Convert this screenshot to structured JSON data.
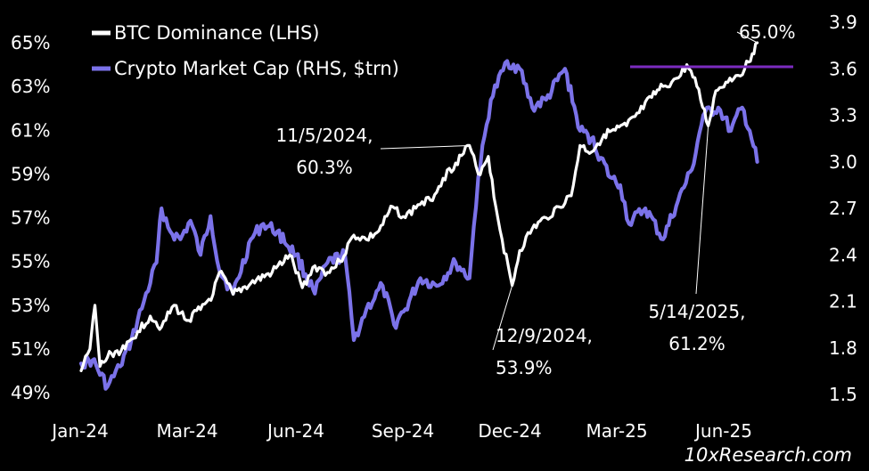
{
  "chart_data": {
    "type": "line",
    "title": "",
    "legend_position": "top-left",
    "grid": false,
    "x_ticks": [
      "Jan-24",
      "Mar-24",
      "Jun-24",
      "Sep-24",
      "Dec-24",
      "Mar-25",
      "Jun-25"
    ],
    "y_left": {
      "ticks": [
        "49%",
        "51%",
        "53%",
        "55%",
        "57%",
        "59%",
        "61%",
        "63%",
        "65%"
      ],
      "ylim": [
        49,
        65
      ]
    },
    "y_right": {
      "ticks": [
        "1.5",
        "1.8",
        "2.1",
        "2.4",
        "2.7",
        "3.0",
        "3.3",
        "3.6",
        "3.9"
      ],
      "ylim": [
        1.5,
        3.9
      ]
    },
    "series": [
      {
        "name": "BTC Dominance (LHS)",
        "axis": "left",
        "unit": "%",
        "color": "#ffffff",
        "points": [
          [
            "2024-01-01",
            50.0
          ],
          [
            "2024-01-08",
            51.0
          ],
          [
            "2024-01-12",
            53.0
          ],
          [
            "2024-01-16",
            50.2
          ],
          [
            "2024-01-25",
            50.8
          ],
          [
            "2024-02-05",
            51.0
          ],
          [
            "2024-02-15",
            51.8
          ],
          [
            "2024-02-25",
            52.5
          ],
          [
            "2024-03-05",
            52.0
          ],
          [
            "2024-03-15",
            53.0
          ],
          [
            "2024-03-25",
            52.3
          ],
          [
            "2024-04-05",
            52.8
          ],
          [
            "2024-04-15",
            53.5
          ],
          [
            "2024-04-20",
            54.5
          ],
          [
            "2024-05-01",
            53.5
          ],
          [
            "2024-05-15",
            54.0
          ],
          [
            "2024-06-01",
            54.5
          ],
          [
            "2024-06-15",
            55.3
          ],
          [
            "2024-06-25",
            53.8
          ],
          [
            "2024-07-05",
            54.8
          ],
          [
            "2024-07-15",
            54.5
          ],
          [
            "2024-07-25",
            55.0
          ],
          [
            "2024-08-05",
            56.2
          ],
          [
            "2024-08-15",
            56.0
          ],
          [
            "2024-08-25",
            56.4
          ],
          [
            "2024-09-05",
            57.5
          ],
          [
            "2024-09-15",
            57.0
          ],
          [
            "2024-09-25",
            57.6
          ],
          [
            "2024-10-05",
            57.8
          ],
          [
            "2024-10-15",
            58.8
          ],
          [
            "2024-10-25",
            59.5
          ],
          [
            "2024-11-05",
            60.3
          ],
          [
            "2024-11-12",
            59.0
          ],
          [
            "2024-11-20",
            59.8
          ],
          [
            "2024-11-26",
            57.5
          ],
          [
            "2024-12-01",
            56.0
          ],
          [
            "2024-12-09",
            53.9
          ],
          [
            "2024-12-15",
            55.5
          ],
          [
            "2024-12-25",
            56.5
          ],
          [
            "2025-01-05",
            57.0
          ],
          [
            "2025-01-15",
            57.5
          ],
          [
            "2025-01-25",
            58.0
          ],
          [
            "2025-02-01",
            60.3
          ],
          [
            "2025-02-10",
            60.0
          ],
          [
            "2025-02-20",
            60.8
          ],
          [
            "2025-03-01",
            61.0
          ],
          [
            "2025-03-10",
            61.2
          ],
          [
            "2025-03-20",
            61.8
          ],
          [
            "2025-03-30",
            62.5
          ],
          [
            "2025-04-08",
            63.0
          ],
          [
            "2025-04-15",
            63.2
          ],
          [
            "2025-04-22",
            63.5
          ],
          [
            "2025-04-27",
            64.0
          ],
          [
            "2025-05-05",
            63.0
          ],
          [
            "2025-05-14",
            61.2
          ],
          [
            "2025-05-20",
            62.8
          ],
          [
            "2025-05-28",
            63.2
          ],
          [
            "2025-06-05",
            63.5
          ],
          [
            "2025-06-12",
            63.8
          ],
          [
            "2025-06-18",
            64.5
          ],
          [
            "2025-06-22",
            65.0
          ]
        ]
      },
      {
        "name": "Crypto Market Cap (RHS, $trn)",
        "axis": "right",
        "unit": "$trn",
        "color": "#7b72e9",
        "points": [
          [
            "2024-01-01",
            1.7
          ],
          [
            "2024-01-10",
            1.72
          ],
          [
            "2024-01-22",
            1.55
          ],
          [
            "2024-02-01",
            1.68
          ],
          [
            "2024-02-10",
            1.85
          ],
          [
            "2024-02-20",
            2.1
          ],
          [
            "2024-03-01",
            2.35
          ],
          [
            "2024-03-05",
            2.7
          ],
          [
            "2024-03-12",
            2.55
          ],
          [
            "2024-03-20",
            2.5
          ],
          [
            "2024-03-28",
            2.62
          ],
          [
            "2024-04-05",
            2.4
          ],
          [
            "2024-04-13",
            2.65
          ],
          [
            "2024-04-20",
            2.3
          ],
          [
            "2024-05-01",
            2.15
          ],
          [
            "2024-05-15",
            2.5
          ],
          [
            "2024-05-25",
            2.6
          ],
          [
            "2024-06-05",
            2.55
          ],
          [
            "2024-06-20",
            2.4
          ],
          [
            "2024-07-05",
            2.15
          ],
          [
            "2024-07-15",
            2.35
          ],
          [
            "2024-07-29",
            2.4
          ],
          [
            "2024-08-05",
            1.85
          ],
          [
            "2024-08-15",
            2.05
          ],
          [
            "2024-08-28",
            2.2
          ],
          [
            "2024-09-06",
            1.95
          ],
          [
            "2024-09-15",
            2.05
          ],
          [
            "2024-09-27",
            2.25
          ],
          [
            "2024-10-10",
            2.2
          ],
          [
            "2024-10-25",
            2.35
          ],
          [
            "2024-11-05",
            2.25
          ],
          [
            "2024-11-12",
            2.9
          ],
          [
            "2024-11-22",
            3.4
          ],
          [
            "2024-12-05",
            3.65
          ],
          [
            "2024-12-15",
            3.6
          ],
          [
            "2024-12-25",
            3.35
          ],
          [
            "2025-01-05",
            3.4
          ],
          [
            "2025-01-20",
            3.6
          ],
          [
            "2025-02-01",
            3.2
          ],
          [
            "2025-02-10",
            3.15
          ],
          [
            "2025-02-25",
            2.9
          ],
          [
            "2025-03-05",
            2.85
          ],
          [
            "2025-03-12",
            2.6
          ],
          [
            "2025-03-25",
            2.7
          ],
          [
            "2025-04-08",
            2.5
          ],
          [
            "2025-04-20",
            2.75
          ],
          [
            "2025-05-01",
            2.95
          ],
          [
            "2025-05-10",
            3.3
          ],
          [
            "2025-05-22",
            3.35
          ],
          [
            "2025-06-01",
            3.2
          ],
          [
            "2025-06-10",
            3.35
          ],
          [
            "2025-06-16",
            3.2
          ],
          [
            "2025-06-22",
            3.0
          ]
        ]
      }
    ],
    "reference_line": {
      "value": 63.9,
      "axis": "left",
      "from": "2025-04-15",
      "to": "2025-07-15",
      "color": "#7b2cbf"
    },
    "annotations": [
      {
        "text_lines": [
          "11/5/2024,",
          "60.3%"
        ],
        "date": "2024-11-05",
        "value": 60.3
      },
      {
        "text_lines": [
          "12/9/2024,",
          "53.9%"
        ],
        "date": "2024-12-09",
        "value": 53.9
      },
      {
        "text_lines": [
          "5/14/2025,",
          "61.2%"
        ],
        "date": "2025-05-14",
        "value": 61.2
      },
      {
        "text_lines": [
          "65.0%"
        ],
        "date": "2025-06-22",
        "value": 65.0
      }
    ]
  },
  "watermark": "10xResearch.com"
}
